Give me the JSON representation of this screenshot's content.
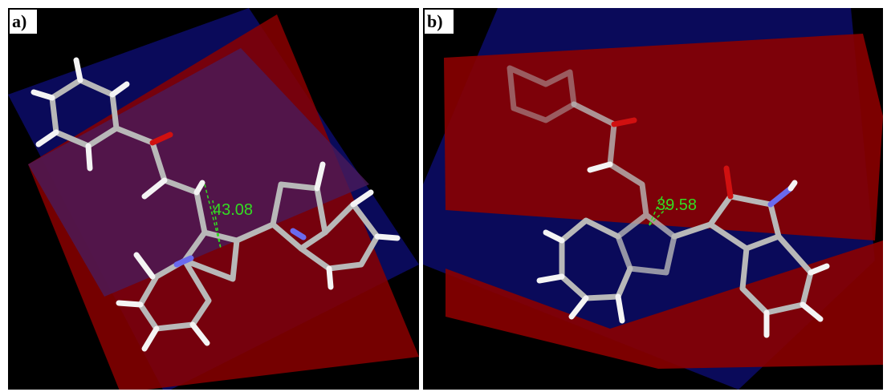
{
  "panels": [
    {
      "label": "a)",
      "angle_label": "43.08"
    },
    {
      "label": "b)",
      "angle_label": "39.58"
    }
  ]
}
